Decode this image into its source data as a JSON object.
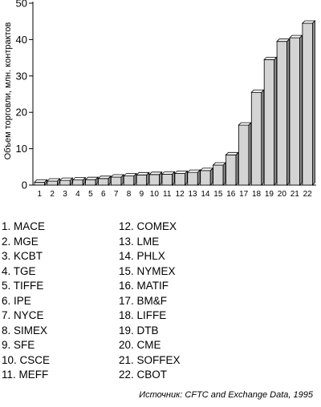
{
  "chart_data": {
    "type": "bar",
    "ylabel": "Объем торговли, млн. контрактов",
    "ylim": [
      0,
      50
    ],
    "yticks": [
      0,
      10,
      20,
      30,
      40,
      50
    ],
    "grid": false,
    "bar_style": "3d",
    "colors": {
      "bar_front": "#d4d4d4",
      "bar_side": "#8c8c8c",
      "bar_top": "#ffffff",
      "axis": "#000000"
    },
    "categories": [
      "1",
      "2",
      "3",
      "4",
      "5",
      "6",
      "7",
      "8",
      "9",
      "10",
      "11",
      "12",
      "13",
      "14",
      "15",
      "16",
      "17",
      "18",
      "19",
      "20",
      "21",
      "22"
    ],
    "values": [
      0.8,
      1.1,
      1.3,
      1.4,
      1.5,
      1.8,
      2.2,
      2.5,
      2.8,
      2.9,
      3.0,
      3.2,
      3.5,
      4.0,
      5.5,
      8.3,
      16.5,
      25.5,
      34.5,
      39.5,
      40.5,
      44.5
    ]
  },
  "legend": [
    "1. MACE",
    "2. MGE",
    "3. KCBT",
    "4. TGE",
    "5. TIFFE",
    "6. IPE",
    "7. NYCE",
    "8. SIMEX",
    "9. SFE",
    "10. CSCE",
    "11. MEFF",
    "12. COMEX",
    "13. LME",
    "14. PHLX",
    "15. NYMEX",
    "16. MATIF",
    "17. BM&F",
    "18. LIFFE",
    "19. DTB",
    "20. CME",
    "21. SOFFEX",
    "22. CBOT"
  ],
  "source": "Источник: CFTC and Exchange Data, 1995"
}
